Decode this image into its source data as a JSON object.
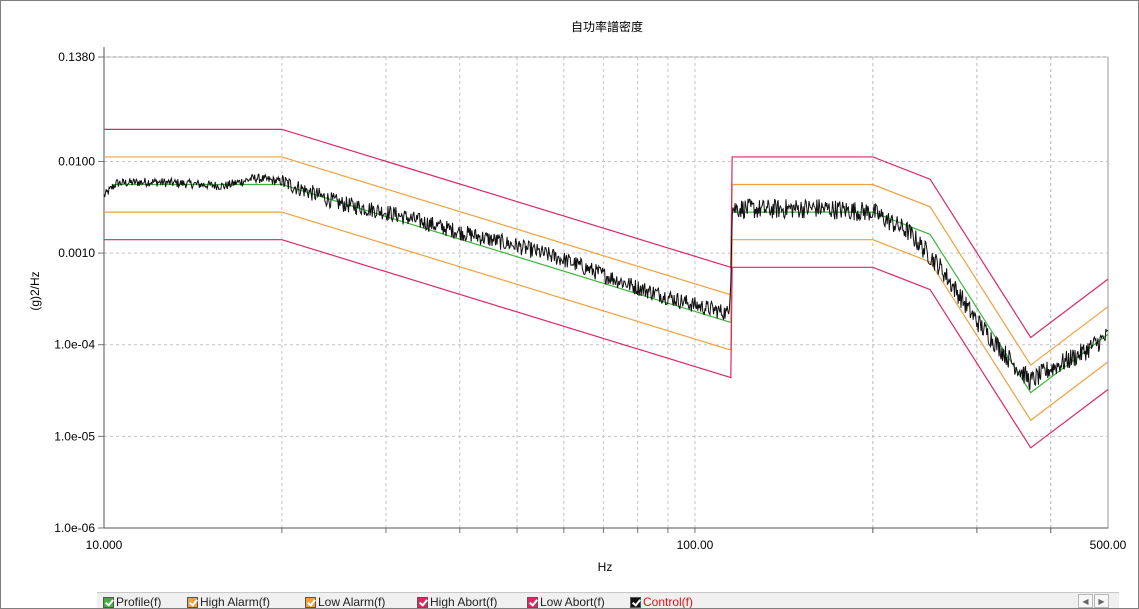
{
  "chart_data": {
    "type": "line",
    "title": "自功率譜密度",
    "xlabel": "Hz",
    "ylabel": "(g)2/Hz",
    "x_scale": "log",
    "y_scale": "log",
    "xlim": [
      10,
      500
    ],
    "ylim": [
      1e-06,
      0.138
    ],
    "x_tick_labels": [
      {
        "value": 10,
        "label": "10.000"
      },
      {
        "value": 100,
        "label": "100.00"
      },
      {
        "value": 500,
        "label": "500.00"
      }
    ],
    "y_tick_labels": [
      {
        "value": 0.138,
        "label": "0.1380"
      },
      {
        "value": 0.01,
        "label": "0.0100"
      },
      {
        "value": 0.001,
        "label": "0.0010"
      },
      {
        "value": 0.0001,
        "label": "1.0e-04"
      },
      {
        "value": 1e-05,
        "label": "1.0e-05"
      },
      {
        "value": 1e-06,
        "label": "1.0e-06"
      }
    ],
    "grid": true,
    "series": [
      {
        "name": "Profile(f)",
        "color": "#3cb43c",
        "points": [
          [
            10.3,
            0.0056
          ],
          [
            20,
            0.0056
          ],
          [
            115,
            0.000175
          ],
          [
            115.6,
            0.0028
          ],
          [
            200,
            0.0028
          ],
          [
            250,
            0.0016
          ],
          [
            370,
            3e-05
          ],
          [
            500,
            0.00013
          ]
        ]
      },
      {
        "name": "High Alarm(f)",
        "color": "#f0a040",
        "points": [
          [
            10,
            0.0112
          ],
          [
            20,
            0.0112
          ],
          [
            115,
            0.00035
          ],
          [
            115.6,
            0.0056
          ],
          [
            200,
            0.0056
          ],
          [
            250,
            0.0032
          ],
          [
            370,
            6e-05
          ],
          [
            500,
            0.00026
          ]
        ]
      },
      {
        "name": "Low Alarm(f)",
        "color": "#f0a040",
        "points": [
          [
            10,
            0.0028
          ],
          [
            20,
            0.0028
          ],
          [
            115,
            8.75e-05
          ],
          [
            115.6,
            0.0014
          ],
          [
            200,
            0.0014
          ],
          [
            250,
            0.0008
          ],
          [
            370,
            1.5e-05
          ],
          [
            500,
            6.5e-05
          ]
        ]
      },
      {
        "name": "High Abort(f)",
        "color": "#dc2864",
        "points": [
          [
            10,
            0.0224
          ],
          [
            20,
            0.0224
          ],
          [
            115,
            0.0007
          ],
          [
            115.6,
            0.0112
          ],
          [
            200,
            0.0112
          ],
          [
            250,
            0.0064
          ],
          [
            370,
            0.00012
          ],
          [
            500,
            0.00052
          ]
        ]
      },
      {
        "name": "Low Abort(f)",
        "color": "#dc2864",
        "points": [
          [
            10,
            0.0014
          ],
          [
            20,
            0.0014
          ],
          [
            115,
            4.38e-05
          ],
          [
            115.6,
            0.0007
          ],
          [
            200,
            0.0007
          ],
          [
            250,
            0.0004
          ],
          [
            370,
            7.5e-06
          ],
          [
            500,
            3.25e-05
          ]
        ]
      },
      {
        "name": "Control(f)",
        "color": "#111111",
        "name_color": "#e01010",
        "noisy": true,
        "points": [
          [
            10,
            0.0042
          ],
          [
            10.5,
            0.0058
          ],
          [
            12,
            0.006
          ],
          [
            14,
            0.0057
          ],
          [
            16,
            0.0054
          ],
          [
            18,
            0.0066
          ],
          [
            20,
            0.006
          ],
          [
            25,
            0.0035
          ],
          [
            30,
            0.0028
          ],
          [
            40,
            0.0017
          ],
          [
            50,
            0.0012
          ],
          [
            60,
            0.00085
          ],
          [
            70,
            0.00058
          ],
          [
            80,
            0.00042
          ],
          [
            100,
            0.00027
          ],
          [
            114,
            0.00022
          ],
          [
            115,
            0.00052
          ],
          [
            115.6,
            0.0031
          ],
          [
            130,
            0.003
          ],
          [
            160,
            0.0031
          ],
          [
            200,
            0.0028
          ],
          [
            230,
            0.0017
          ],
          [
            260,
            0.0007
          ],
          [
            300,
            0.00018
          ],
          [
            340,
            7e-05
          ],
          [
            370,
            4e-05
          ],
          [
            400,
            5.5e-05
          ],
          [
            450,
            8e-05
          ],
          [
            500,
            0.000125
          ]
        ]
      }
    ],
    "legend_position": "bottom"
  },
  "legend": {
    "items": [
      {
        "label": "Profile(f)",
        "color": "#3cb43c",
        "label_color": "#222222",
        "checked": true
      },
      {
        "label": "High Alarm(f)",
        "color": "#f0a040",
        "label_color": "#222222",
        "checked": true
      },
      {
        "label": "Low Alarm(f)",
        "color": "#f0a040",
        "label_color": "#222222",
        "checked": true
      },
      {
        "label": "High Abort(f)",
        "color": "#dc2864",
        "label_color": "#222222",
        "checked": true
      },
      {
        "label": "Low Abort(f)",
        "color": "#dc2864",
        "label_color": "#222222",
        "checked": true
      },
      {
        "label": "Control(f)",
        "color": "#111111",
        "label_color": "#e01010",
        "checked": true
      }
    ],
    "scroll_left_icon": "◀",
    "scroll_right_icon": "▶"
  }
}
